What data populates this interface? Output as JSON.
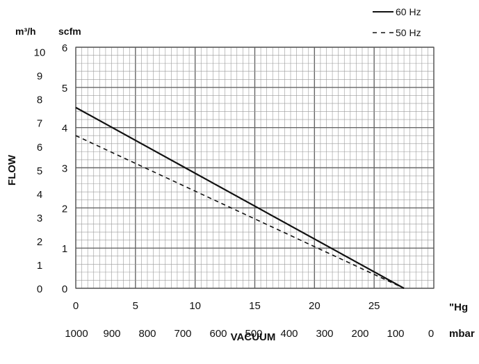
{
  "chart_data": {
    "type": "line",
    "ylabel": "FLOW",
    "xlabel": "VACUUM",
    "y_units": {
      "primary": "scfm",
      "secondary": "m³/h"
    },
    "x_units": {
      "primary": "\"Hg",
      "secondary": "mbar"
    },
    "xlim": [
      0,
      30
    ],
    "ylim": [
      0,
      6
    ],
    "x_ticks": [
      "0",
      "5",
      "10",
      "15",
      "20",
      "25"
    ],
    "y_ticks": [
      "0",
      "1",
      "2",
      "3",
      "4",
      "5",
      "6"
    ],
    "y2_ticks": [
      "0",
      "1",
      "2",
      "3",
      "4",
      "5",
      "6",
      "7",
      "8",
      "9",
      "10"
    ],
    "x2_ticks": [
      "1000",
      "900",
      "800",
      "700",
      "600",
      "500",
      "400",
      "300",
      "200",
      "100",
      "0"
    ],
    "grid": true,
    "legend_position": "top-right",
    "series": [
      {
        "name": "60 Hz",
        "style": "solid",
        "color": "#111111",
        "x": [
          0,
          27.5
        ],
        "y": [
          4.5,
          0
        ]
      },
      {
        "name": "50 Hz",
        "style": "dashed",
        "color": "#111111",
        "x": [
          0,
          27.5
        ],
        "y": [
          3.8,
          0
        ]
      }
    ]
  }
}
